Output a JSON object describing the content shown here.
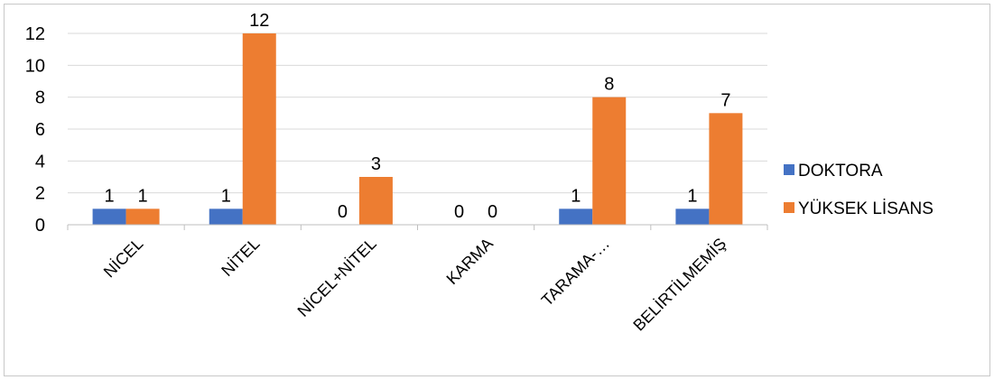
{
  "chart_data": {
    "type": "bar",
    "title": "",
    "xlabel": "",
    "ylabel": "",
    "categories": [
      "NİCEL",
      "NİTEL",
      "NİCEL+NİTEL",
      "KARMA",
      "TARAMA-…",
      "BELİRTİLMEMİŞ"
    ],
    "series": [
      {
        "name": "DOKTORA",
        "values": [
          1,
          1,
          0,
          0,
          1,
          1
        ],
        "color": "#4472C4"
      },
      {
        "name": "YÜKSEK LİSANS",
        "values": [
          1,
          12,
          3,
          0,
          8,
          7
        ],
        "color": "#ED7D31"
      }
    ],
    "ylim": [
      0,
      12
    ],
    "yticks": [
      0,
      2,
      4,
      6,
      8,
      10,
      12
    ],
    "grid": true,
    "legend_position": "right",
    "data_labels": true
  }
}
